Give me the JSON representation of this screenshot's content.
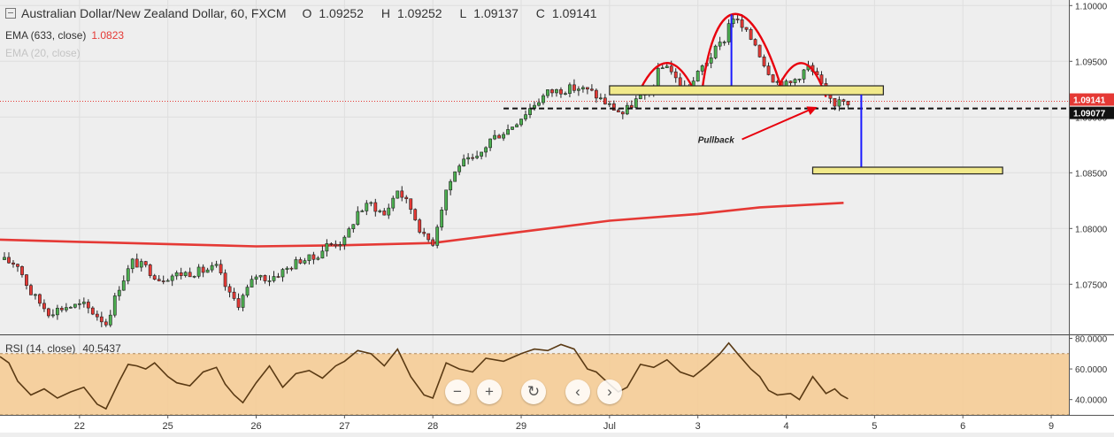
{
  "header": {
    "title": "Australian Dollar/New Zealand Dollar, 60, FXCM",
    "ohlc": [
      {
        "label": "O",
        "value": "1.09252"
      },
      {
        "label": "H",
        "value": "1.09252"
      },
      {
        "label": "L",
        "value": "1.09137"
      },
      {
        "label": "C",
        "value": "1.09141"
      }
    ]
  },
  "indicators": [
    {
      "label": "EMA (633, close)",
      "value": "1.0823",
      "color": "#e53935"
    },
    {
      "label": "EMA (20, close)",
      "value": ""
    }
  ],
  "rsi_label": {
    "label": "RSI (14, close)",
    "value": "40.5437"
  },
  "price_badges": [
    {
      "text": "1.09141",
      "price": 1.09141,
      "color": "#e53935"
    },
    {
      "text": "1.09077",
      "price": 1.09077,
      "color": "#111111"
    }
  ],
  "annotation_text": "Pullback",
  "controls": [
    "zoom-out",
    "zoom-in",
    "reset",
    "scroll-left",
    "scroll-right"
  ],
  "chart_data": [
    {
      "type": "candlestick",
      "title": "Australian Dollar/New Zealand Dollar, 60, FXCM",
      "y_ticks": [
        "1.10000",
        "1.09500",
        "1.09000",
        "1.08500",
        "1.08000",
        "1.07500"
      ],
      "y_tick_values": [
        1.1,
        1.095,
        1.09,
        1.085,
        1.08,
        1.075
      ],
      "ylim": [
        1.0705,
        1.1005
      ],
      "x_ticks": [
        "22",
        "25",
        "26",
        "27",
        "28",
        "29",
        "Jul",
        "3",
        "4",
        "5",
        "6",
        "9"
      ],
      "x_day_index": [
        0,
        1,
        2,
        3,
        4,
        5,
        6,
        7,
        8,
        9,
        10,
        11
      ],
      "xlim": [
        -0.9,
        11.2
      ],
      "last_candle_day": 8.7,
      "price_path": [
        [
          -0.9,
          1.0772
        ],
        [
          -0.7,
          1.0768
        ],
        [
          -0.55,
          1.0742
        ],
        [
          -0.35,
          1.0725
        ],
        [
          -0.15,
          1.073
        ],
        [
          0.05,
          1.0731
        ],
        [
          0.2,
          1.0722
        ],
        [
          0.3,
          1.0715
        ],
        [
          0.45,
          1.0748
        ],
        [
          0.6,
          1.077
        ],
        [
          0.75,
          1.0765
        ],
        [
          0.9,
          1.0755
        ],
        [
          1.05,
          1.0758
        ],
        [
          1.2,
          1.076
        ],
        [
          1.4,
          1.0762
        ],
        [
          1.55,
          1.0765
        ],
        [
          1.7,
          1.074
        ],
        [
          1.8,
          1.0733
        ],
        [
          2.0,
          1.0758
        ],
        [
          2.15,
          1.0755
        ],
        [
          2.35,
          1.0764
        ],
        [
          2.5,
          1.0772
        ],
        [
          2.65,
          1.0773
        ],
        [
          2.8,
          1.0785
        ],
        [
          3.0,
          1.0789
        ],
        [
          3.15,
          1.0815
        ],
        [
          3.3,
          1.0822
        ],
        [
          3.45,
          1.0812
        ],
        [
          3.6,
          1.0835
        ],
        [
          3.75,
          1.0818
        ],
        [
          3.9,
          1.0792
        ],
        [
          4.0,
          1.0788
        ],
        [
          4.15,
          1.0835
        ],
        [
          4.3,
          1.0858
        ],
        [
          4.5,
          1.0862
        ],
        [
          4.65,
          1.088
        ],
        [
          4.85,
          1.0889
        ],
        [
          5.0,
          1.09
        ],
        [
          5.15,
          1.0912
        ],
        [
          5.3,
          1.0922
        ],
        [
          5.5,
          1.0925
        ],
        [
          5.65,
          1.0926
        ],
        [
          5.8,
          1.0922
        ],
        [
          6.0,
          1.091
        ],
        [
          6.15,
          1.0903
        ],
        [
          6.3,
          1.0915
        ],
        [
          6.45,
          1.0922
        ],
        [
          6.55,
          1.094
        ],
        [
          6.65,
          1.0948
        ],
        [
          6.75,
          1.0934
        ],
        [
          6.85,
          1.0926
        ],
        [
          6.95,
          1.0932
        ],
        [
          7.05,
          1.0945
        ],
        [
          7.15,
          1.0955
        ],
        [
          7.3,
          1.097
        ],
        [
          7.38,
          1.0992
        ],
        [
          7.45,
          1.0985
        ],
        [
          7.55,
          1.0975
        ],
        [
          7.65,
          1.0966
        ],
        [
          7.75,
          1.0948
        ],
        [
          7.85,
          1.0935
        ],
        [
          7.95,
          1.0928
        ],
        [
          8.05,
          1.093
        ],
        [
          8.15,
          1.0938
        ],
        [
          8.25,
          1.0945
        ],
        [
          8.35,
          1.0935
        ],
        [
          8.45,
          1.092
        ],
        [
          8.55,
          1.0912
        ],
        [
          8.62,
          1.092
        ],
        [
          8.7,
          1.09141
        ]
      ],
      "ema_633": [
        [
          -0.9,
          1.079
        ],
        [
          0.0,
          1.0788
        ],
        [
          1.0,
          1.0786
        ],
        [
          2.0,
          1.0784
        ],
        [
          3.0,
          1.0785
        ],
        [
          4.0,
          1.0787
        ],
        [
          5.0,
          1.0797
        ],
        [
          6.0,
          1.0807
        ],
        [
          7.0,
          1.0813
        ],
        [
          7.7,
          1.0819
        ],
        [
          8.65,
          1.0823
        ]
      ],
      "rsi": {
        "ticks": [
          "80.0000",
          "60.0000",
          "40.0000"
        ],
        "tick_values": [
          80,
          60,
          40
        ],
        "ylim": [
          30,
          82
        ],
        "band": [
          30,
          70
        ],
        "values": [
          [
            -0.9,
            68
          ],
          [
            -0.8,
            64
          ],
          [
            -0.7,
            52
          ],
          [
            -0.55,
            43
          ],
          [
            -0.4,
            47
          ],
          [
            -0.25,
            41
          ],
          [
            -0.1,
            45
          ],
          [
            0.05,
            48
          ],
          [
            0.2,
            37
          ],
          [
            0.3,
            34
          ],
          [
            0.45,
            52
          ],
          [
            0.55,
            63
          ],
          [
            0.65,
            62
          ],
          [
            0.75,
            60
          ],
          [
            0.85,
            64
          ],
          [
            1.0,
            55
          ],
          [
            1.1,
            51
          ],
          [
            1.25,
            49
          ],
          [
            1.4,
            58
          ],
          [
            1.55,
            61
          ],
          [
            1.65,
            50
          ],
          [
            1.75,
            43
          ],
          [
            1.85,
            38
          ],
          [
            2.0,
            51
          ],
          [
            2.15,
            62
          ],
          [
            2.3,
            48
          ],
          [
            2.45,
            57
          ],
          [
            2.6,
            59
          ],
          [
            2.75,
            54
          ],
          [
            2.9,
            62
          ],
          [
            3.0,
            65
          ],
          [
            3.15,
            72
          ],
          [
            3.3,
            70
          ],
          [
            3.45,
            62
          ],
          [
            3.6,
            73
          ],
          [
            3.75,
            55
          ],
          [
            3.9,
            43
          ],
          [
            4.0,
            41
          ],
          [
            4.15,
            64
          ],
          [
            4.3,
            60
          ],
          [
            4.45,
            58
          ],
          [
            4.6,
            67
          ],
          [
            4.8,
            65
          ],
          [
            5.0,
            70
          ],
          [
            5.15,
            73
          ],
          [
            5.3,
            72
          ],
          [
            5.45,
            76
          ],
          [
            5.6,
            73
          ],
          [
            5.75,
            60
          ],
          [
            5.85,
            58
          ],
          [
            6.0,
            50
          ],
          [
            6.1,
            45
          ],
          [
            6.2,
            48
          ],
          [
            6.35,
            63
          ],
          [
            6.5,
            61
          ],
          [
            6.65,
            66
          ],
          [
            6.8,
            58
          ],
          [
            6.95,
            55
          ],
          [
            7.1,
            62
          ],
          [
            7.25,
            70
          ],
          [
            7.35,
            77
          ],
          [
            7.45,
            70
          ],
          [
            7.6,
            60
          ],
          [
            7.7,
            55
          ],
          [
            7.8,
            46
          ],
          [
            7.9,
            43
          ],
          [
            8.05,
            44
          ],
          [
            8.15,
            40
          ],
          [
            8.3,
            55
          ],
          [
            8.45,
            44
          ],
          [
            8.55,
            47
          ],
          [
            8.62,
            43
          ],
          [
            8.7,
            40.5437
          ]
        ]
      }
    }
  ]
}
